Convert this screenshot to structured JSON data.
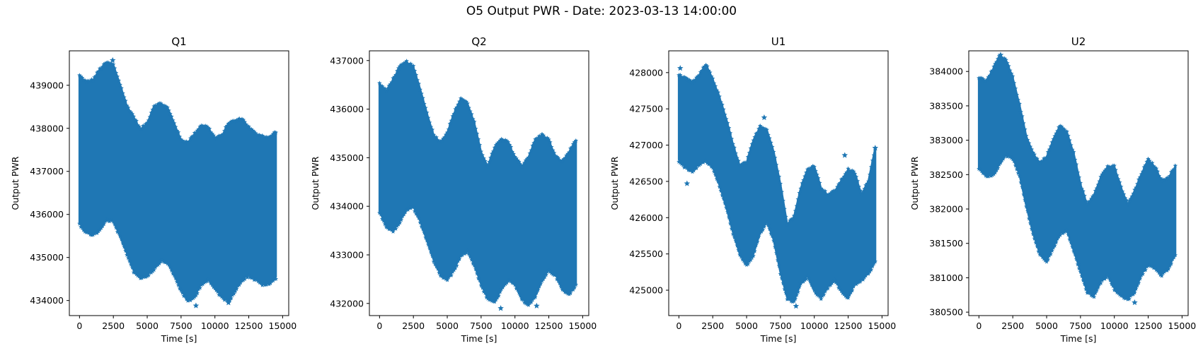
{
  "figure": {
    "suptitle": "O5 Output PWR - Date: 2023-03-13 14:00:00"
  },
  "colors": {
    "series": "#1f77b4",
    "axis": "#000000",
    "background": "#ffffff"
  },
  "chart_data": [
    {
      "type": "scatter",
      "title": "Q1",
      "xlabel": "Time [s]",
      "ylabel": "Output PWR",
      "marker": "star",
      "xlim": [
        -750,
        15450
      ],
      "ylim": [
        433650,
        439800
      ],
      "xticks": [
        0,
        2500,
        5000,
        7500,
        10000,
        12500,
        15000
      ],
      "xtick_labels": [
        "0",
        "2500",
        "5000",
        "7500",
        "10000",
        "12500",
        "15000"
      ],
      "yticks": [
        434000,
        435000,
        436000,
        437000,
        438000,
        439000
      ],
      "ytick_labels": [
        "434000",
        "435000",
        "436000",
        "437000",
        "438000",
        "439000"
      ],
      "band": {
        "x": [
          0,
          500,
          1000,
          1500,
          2000,
          2500,
          3000,
          3500,
          4000,
          4500,
          5000,
          5500,
          6000,
          6500,
          7000,
          7500,
          8000,
          8500,
          9000,
          9500,
          10000,
          10500,
          11000,
          11500,
          12000,
          12500,
          13000,
          13500,
          14000,
          14500
        ],
        "upper": [
          439200,
          439050,
          439100,
          439350,
          439500,
          439450,
          439000,
          438500,
          438250,
          437950,
          438100,
          438500,
          438550,
          438450,
          438100,
          437700,
          437650,
          437850,
          438050,
          438000,
          437750,
          437800,
          438100,
          438150,
          438200,
          438000,
          437850,
          437800,
          437750,
          437900
        ],
        "lower": [
          435800,
          435600,
          435550,
          435650,
          435900,
          435850,
          435500,
          435100,
          434700,
          434550,
          434600,
          434750,
          434950,
          434900,
          434600,
          434250,
          434000,
          434100,
          434400,
          434500,
          434300,
          434100,
          434000,
          434250,
          434500,
          434600,
          434500,
          434400,
          434400,
          434550
        ]
      },
      "outliers": [
        [
          2450,
          439580
        ],
        [
          8600,
          433880
        ],
        [
          11000,
          433950
        ]
      ]
    },
    {
      "type": "scatter",
      "title": "Q2",
      "xlabel": "Time [s]",
      "ylabel": "Output PWR",
      "marker": "star",
      "xlim": [
        -750,
        15450
      ],
      "ylim": [
        431750,
        437200
      ],
      "xticks": [
        0,
        2500,
        5000,
        7500,
        10000,
        12500,
        15000
      ],
      "xtick_labels": [
        "0",
        "2500",
        "5000",
        "7500",
        "10000",
        "12500",
        "15000"
      ],
      "yticks": [
        432000,
        433000,
        434000,
        435000,
        436000,
        437000
      ],
      "ytick_labels": [
        "432000",
        "433000",
        "434000",
        "435000",
        "436000",
        "437000"
      ],
      "band": {
        "x": [
          0,
          500,
          1000,
          1500,
          2000,
          2500,
          3000,
          3500,
          4000,
          4500,
          5000,
          5500,
          6000,
          6500,
          7000,
          7500,
          8000,
          8500,
          9000,
          9500,
          10000,
          10500,
          11000,
          11500,
          12000,
          12500,
          13000,
          13500,
          14000,
          14500
        ],
        "upper": [
          436500,
          436350,
          436600,
          436850,
          436950,
          436850,
          436400,
          435900,
          435450,
          435300,
          435500,
          435900,
          436200,
          436100,
          435700,
          435100,
          434800,
          435200,
          435350,
          435300,
          435000,
          434800,
          435000,
          435350,
          435450,
          435350,
          435000,
          434900,
          435100,
          435350
        ],
        "lower": [
          433900,
          433600,
          433500,
          433700,
          433950,
          434000,
          433700,
          433300,
          432900,
          432600,
          432500,
          432700,
          433000,
          433100,
          432800,
          432400,
          432100,
          432050,
          432300,
          432500,
          432400,
          432100,
          432000,
          432150,
          432500,
          432700,
          432600,
          432300,
          432200,
          432400
        ]
      },
      "outliers": [
        [
          8950,
          431900
        ],
        [
          11600,
          431950
        ]
      ]
    },
    {
      "type": "scatter",
      "title": "U1",
      "xlabel": "Time [s]",
      "ylabel": "Output PWR",
      "marker": "star",
      "xlim": [
        -750,
        15450
      ],
      "ylim": [
        424650,
        428300
      ],
      "xticks": [
        0,
        2500,
        5000,
        7500,
        10000,
        12500,
        15000
      ],
      "xtick_labels": [
        "0",
        "2500",
        "5000",
        "7500",
        "10000",
        "12500",
        "15000"
      ],
      "yticks": [
        425000,
        425500,
        426000,
        426500,
        427000,
        427500,
        428000
      ],
      "ytick_labels": [
        "425000",
        "425500",
        "426000",
        "426500",
        "427000",
        "427500",
        "428000"
      ],
      "band": {
        "x": [
          0,
          500,
          1000,
          1500,
          2000,
          2500,
          3000,
          3500,
          4000,
          4500,
          5000,
          5500,
          6000,
          6500,
          7000,
          7500,
          8000,
          8500,
          9000,
          9500,
          10000,
          10500,
          11000,
          11500,
          12000,
          12500,
          13000,
          13500,
          14000,
          14500
        ],
        "upper": [
          427950,
          427900,
          427850,
          427950,
          428100,
          427900,
          427650,
          427350,
          427000,
          426700,
          426750,
          427050,
          427250,
          427200,
          426900,
          426450,
          425900,
          426000,
          426400,
          426650,
          426700,
          426400,
          426300,
          426350,
          426500,
          426650,
          426600,
          426300,
          426500,
          426950
        ],
        "lower": [
          426800,
          426700,
          426650,
          426750,
          426800,
          426700,
          426450,
          426150,
          425800,
          425500,
          425350,
          425500,
          425800,
          425950,
          425700,
          425250,
          424900,
          424850,
          425100,
          425200,
          425000,
          424900,
          425050,
          425150,
          425000,
          424900,
          425100,
          425150,
          425250,
          425400
        ]
      },
      "outliers": [
        [
          100,
          428060
        ],
        [
          600,
          426470
        ],
        [
          6300,
          427380
        ],
        [
          8650,
          424780
        ],
        [
          12250,
          426860
        ],
        [
          14500,
          426960
        ]
      ]
    },
    {
      "type": "scatter",
      "title": "U2",
      "xlabel": "Time [s]",
      "ylabel": "Output PWR",
      "marker": "star",
      "xlim": [
        -750,
        15450
      ],
      "ylim": [
        380450,
        384300
      ],
      "xticks": [
        0,
        2500,
        5000,
        7500,
        10000,
        12500,
        15000
      ],
      "xtick_labels": [
        "0",
        "2500",
        "5000",
        "7500",
        "10000",
        "12500",
        "15000"
      ],
      "yticks": [
        380500,
        381000,
        381500,
        382000,
        382500,
        383000,
        383500,
        384000
      ],
      "ytick_labels": [
        "380500",
        "381000",
        "381500",
        "382000",
        "382500",
        "383000",
        "383500",
        "384000"
      ],
      "band": {
        "x": [
          0,
          500,
          1000,
          1500,
          2000,
          2500,
          3000,
          3500,
          4000,
          4500,
          5000,
          5500,
          6000,
          6500,
          7000,
          7500,
          8000,
          8500,
          9000,
          9500,
          10000,
          10500,
          11000,
          11500,
          12000,
          12500,
          13000,
          13500,
          14000,
          14500
        ],
        "upper": [
          383900,
          383850,
          384000,
          384200,
          384150,
          383900,
          383500,
          383050,
          382800,
          382650,
          382750,
          383000,
          383200,
          383100,
          382800,
          382350,
          382050,
          382200,
          382450,
          382600,
          382600,
          382300,
          382050,
          382250,
          382500,
          382700,
          382600,
          382400,
          382450,
          382600
        ],
        "lower": [
          382600,
          382500,
          382500,
          382650,
          382800,
          382750,
          382500,
          382050,
          381650,
          381350,
          381250,
          381450,
          381650,
          381700,
          381400,
          381100,
          380800,
          380750,
          380950,
          381050,
          380850,
          380750,
          380700,
          380800,
          381050,
          381200,
          381150,
          381050,
          381150,
          381350
        ]
      },
      "outliers": [
        [
          1600,
          384240
        ],
        [
          11500,
          380640
        ]
      ]
    }
  ]
}
